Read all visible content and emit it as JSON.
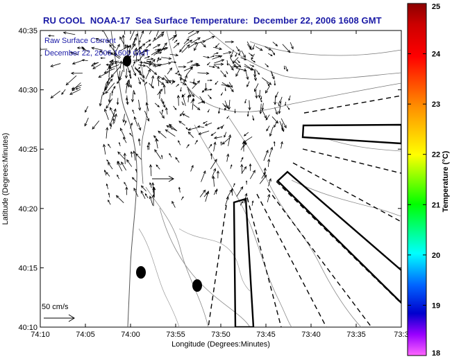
{
  "title": "RU COOL  NOAA-17  Sea Surface Temperature:  December 22, 2006 1608 GMT",
  "legend": {
    "line1": "Raw Surface Current",
    "line2": "December 22, 2006 1600 GMT"
  },
  "scale_label": "50 cm/s",
  "x_axis": {
    "label": "Longitude (Degrees:Minutes)",
    "ticks": [
      "74:10",
      "74:05",
      "74:00",
      "73:55",
      "73:50",
      "73:45",
      "73:40",
      "73:35",
      "73:3"
    ]
  },
  "y_axis": {
    "label": "Latitude (Degrees:Minutes)",
    "ticks": [
      "40:35",
      "40:30",
      "40:25",
      "40:20",
      "40:15",
      "40:10"
    ]
  },
  "colorbar": {
    "label": "Temperature (°C)",
    "ticks": [
      "25",
      "24",
      "23",
      "22",
      "21",
      "20",
      "19",
      "18"
    ],
    "colors": [
      "#8b0000",
      "#ff0000",
      "#ff8c00",
      "#ffff00",
      "#00ff00",
      "#00ffff",
      "#0064ff",
      "#0000cd",
      "#ff00ff"
    ]
  }
}
